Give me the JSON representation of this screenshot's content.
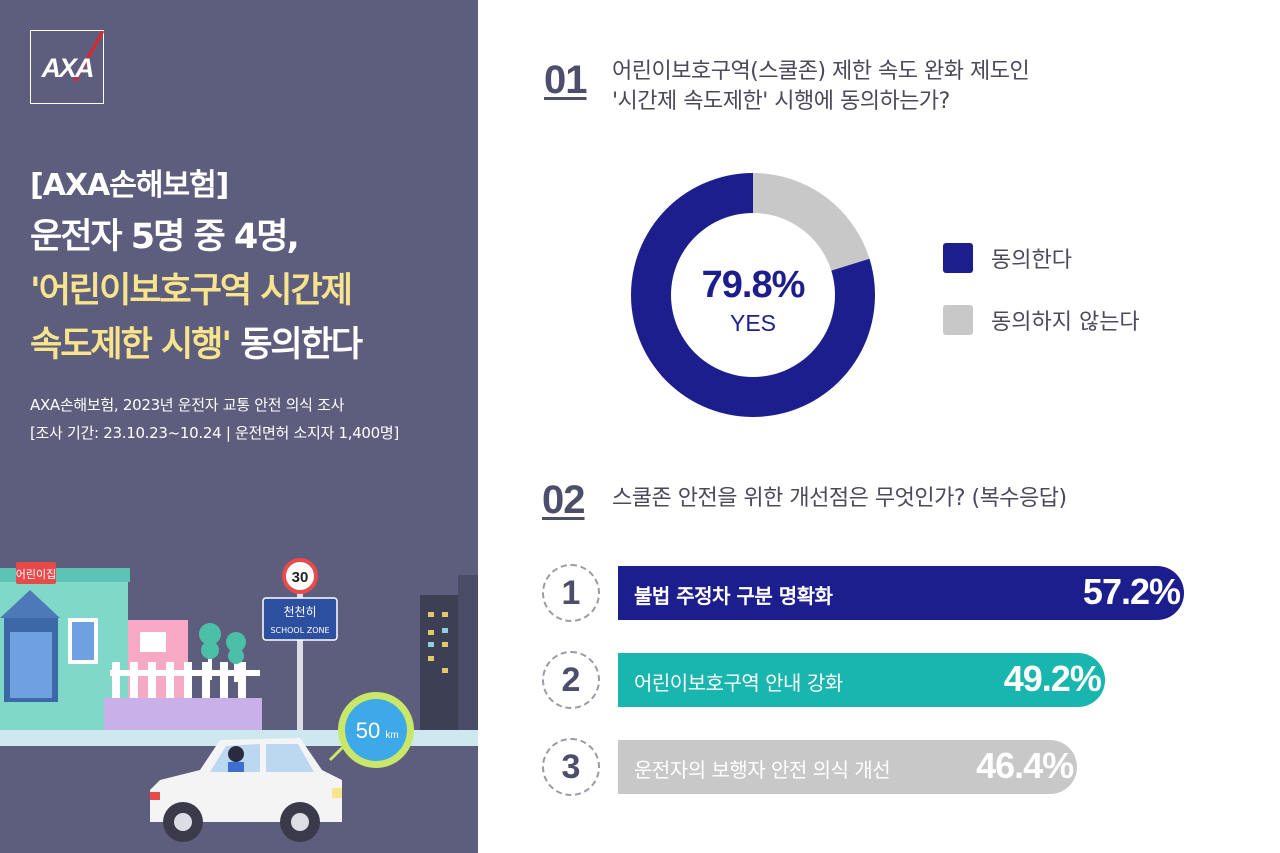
{
  "brand": {
    "logo": "AXA"
  },
  "left": {
    "tag": "[AXA손해보험]",
    "headline_line1": "운전자 5명 중 4명,",
    "headline_line2": "'어린이보호구역 시간제",
    "headline_line3_hl": "속도제한 시행'",
    "headline_line3_rest": " 동의한다",
    "sub1": "AXA손해보험, 2023년 운전자 교통 안전 의식 조사",
    "sub2": "[조사 기간: 23.10.23~10.24 | 운전면허 소지자 1,400명]",
    "scene": {
      "kindergarten_sign": "어린이집",
      "speed_sign": "30",
      "zone_sign_top": "천천히",
      "zone_sign_bottom": "SCHOOL ZONE",
      "speed_bubble_num": "50",
      "speed_bubble_unit": "km"
    }
  },
  "q1": {
    "num": "01",
    "line1": "어린이보호구역(스쿨존) 제한 속도 완화 제도인",
    "line2": "'시간제 속도제한' 시행에 동의하는가?",
    "center_pct": "79.8%",
    "center_label": "YES"
  },
  "q2": {
    "num": "02",
    "text": "스쿨존 안전을 위한 개선점은 무엇인가? (복수응답)"
  },
  "colors": {
    "navy": "#1c1e8e",
    "teal": "#18b6ae",
    "gray": "#c8c8c8",
    "panel": "#5d5e7e",
    "accent_yellow": "#f7e48c"
  },
  "chart_data": [
    {
      "type": "pie",
      "variant": "donut",
      "categories": [
        "동의한다",
        "동의하지 않는다"
      ],
      "values": [
        79.8,
        20.2
      ],
      "colors": [
        "#1c1e8e",
        "#c8c8c8"
      ],
      "legend": "right"
    },
    {
      "type": "bar",
      "orientation": "horizontal",
      "categories": [
        "불법 주정차 구분 명확화",
        "어린이보호구역 안내 강화",
        "운전자의 보행자 안전 의식 개선"
      ],
      "values": [
        57.2,
        49.2,
        46.4
      ],
      "value_labels": [
        "57.2%",
        "49.2%",
        "46.4%"
      ],
      "ranks": [
        "1",
        "2",
        "3"
      ],
      "colors": [
        "#1c1e8e",
        "#18b6ae",
        "#c8c8c8"
      ],
      "label_colors": [
        "#ffffff",
        "#ffffff",
        "#ffffff"
      ],
      "label_bold": [
        true,
        false,
        false
      ],
      "xlim": [
        0,
        57.2
      ]
    }
  ]
}
